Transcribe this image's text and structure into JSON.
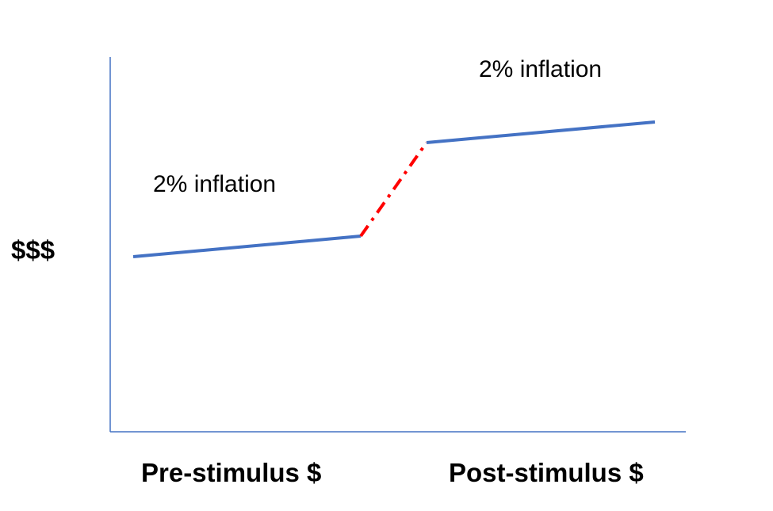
{
  "y_axis_label": "$$$",
  "annotations": [
    "2% inflation",
    "2% inflation"
  ],
  "x_labels": [
    "Pre-stimulus $",
    "Post-stimulus $"
  ]
}
